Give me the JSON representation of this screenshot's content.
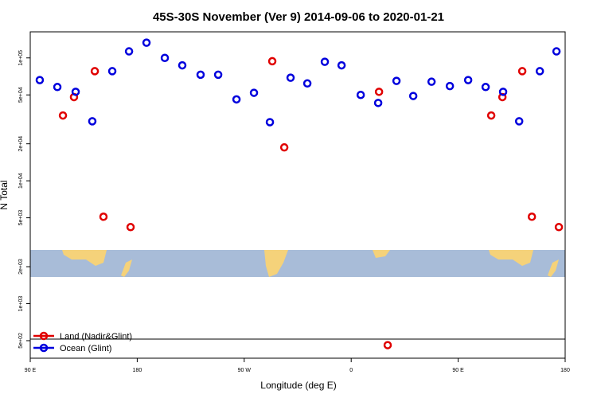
{
  "chart_data": {
    "type": "scatter",
    "title": "45S-30S November (Ver 9)   2014-09-06 to 2020-01-21",
    "x_label": "Longitude (deg E)",
    "y_label": "N Total",
    "xlim": [
      90,
      540
    ],
    "ylim": [
      360,
      163000
    ],
    "log_y": true,
    "legend": "bottom-left",
    "xticks": [
      {
        "value": 90,
        "label": "90 E"
      },
      {
        "value": 180,
        "label": "180"
      },
      {
        "value": 270,
        "label": "90 W"
      },
      {
        "value": 360,
        "label": "0"
      },
      {
        "value": 450,
        "label": "90 E"
      },
      {
        "value": 540,
        "label": "180"
      }
    ],
    "yticks": [
      {
        "value": 500,
        "label": "5e+02"
      },
      {
        "value": 1000,
        "label": "1e+03"
      },
      {
        "value": 2000,
        "label": "2e+03"
      },
      {
        "value": 5000,
        "label": "5e+03"
      },
      {
        "value": 10000,
        "label": "1e+04"
      },
      {
        "value": 20000,
        "label": "2e+04"
      },
      {
        "value": 50000,
        "label": "5e+04"
      },
      {
        "value": 100000,
        "label": "1e+05"
      }
    ],
    "series": [
      {
        "name": "Land (Nadir&Glint)",
        "color": "#e00000",
        "x": [
          117.5,
          126.8,
          144.3,
          151.6,
          174.4,
          293.6,
          303.7,
          383.4,
          390.7,
          477.8,
          487.2,
          503.9,
          512.0,
          534.7
        ],
        "values": [
          34000,
          48000,
          78000,
          5100,
          4200,
          94000,
          18700,
          53000,
          460,
          34000,
          48000,
          78000,
          5100,
          4200
        ]
      },
      {
        "name": "Ocean (Glint)",
        "color": "#0000dd",
        "x": [
          98.0,
          112.8,
          128.2,
          142.2,
          159.0,
          173.1,
          187.8,
          203.2,
          217.9,
          233.3,
          248.1,
          263.5,
          278.2,
          291.6,
          309.0,
          323.1,
          337.8,
          351.9,
          368.0,
          382.7,
          398.1,
          412.2,
          427.6,
          443.0,
          458.4,
          473.1,
          487.8,
          501.3,
          518.7,
          532.7
        ],
        "values": [
          66000,
          58000,
          53000,
          30500,
          78000,
          113000,
          133000,
          100000,
          87000,
          73000,
          73000,
          46000,
          52000,
          30000,
          69000,
          62000,
          93000,
          87000,
          50000,
          43000,
          65000,
          49000,
          64000,
          59000,
          66000,
          58000,
          53000,
          30500,
          78000,
          113000
        ]
      }
    ]
  }
}
